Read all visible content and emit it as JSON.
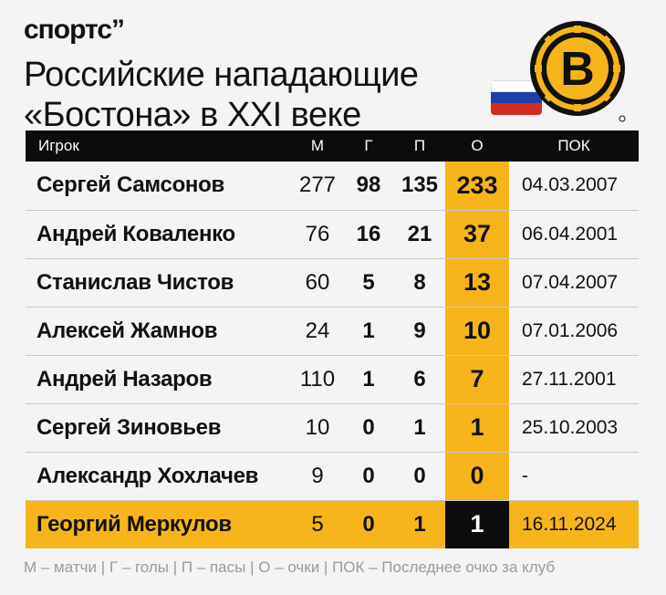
{
  "brand": "спортс”",
  "title_line1": "Российские нападающие",
  "title_line2": "«Бостона» в XXI веке",
  "logo_letter": "B",
  "colors": {
    "accent": "#f7b51b",
    "dark": "#0c0c0c"
  },
  "table": {
    "headers": {
      "name": "Игрок",
      "m": "М",
      "g": "Г",
      "p": "П",
      "o": "О",
      "pok": "ПОК"
    },
    "rows": [
      {
        "name": "Сергей Самсонов",
        "m": "277",
        "g": "98",
        "p": "135",
        "o": "233",
        "pok": "04.03.2007"
      },
      {
        "name": "Андрей Коваленко",
        "m": "76",
        "g": "16",
        "p": "21",
        "o": "37",
        "pok": "06.04.2001"
      },
      {
        "name": "Станислав Чистов",
        "m": "60",
        "g": "5",
        "p": "8",
        "o": "13",
        "pok": "07.04.2007"
      },
      {
        "name": "Алексей Жамнов",
        "m": "24",
        "g": "1",
        "p": "9",
        "o": "10",
        "pok": "07.01.2006"
      },
      {
        "name": "Андрей Назаров",
        "m": "110",
        "g": "1",
        "p": "6",
        "o": "7",
        "pok": "27.11.2001"
      },
      {
        "name": "Сергей Зиновьев",
        "m": "10",
        "g": "0",
        "p": "1",
        "o": "1",
        "pok": "25.10.2003"
      },
      {
        "name": "Александр Хохлачев",
        "m": "9",
        "g": "0",
        "p": "0",
        "o": "0",
        "pok": "-"
      },
      {
        "name": "Георгий Меркулов",
        "m": "5",
        "g": "0",
        "p": "1",
        "o": "1",
        "pok": "16.11.2024"
      }
    ]
  },
  "legend": "М – матчи | Г – голы | П – пасы | О – очки | ПОК – Последнее очко за клуб"
}
